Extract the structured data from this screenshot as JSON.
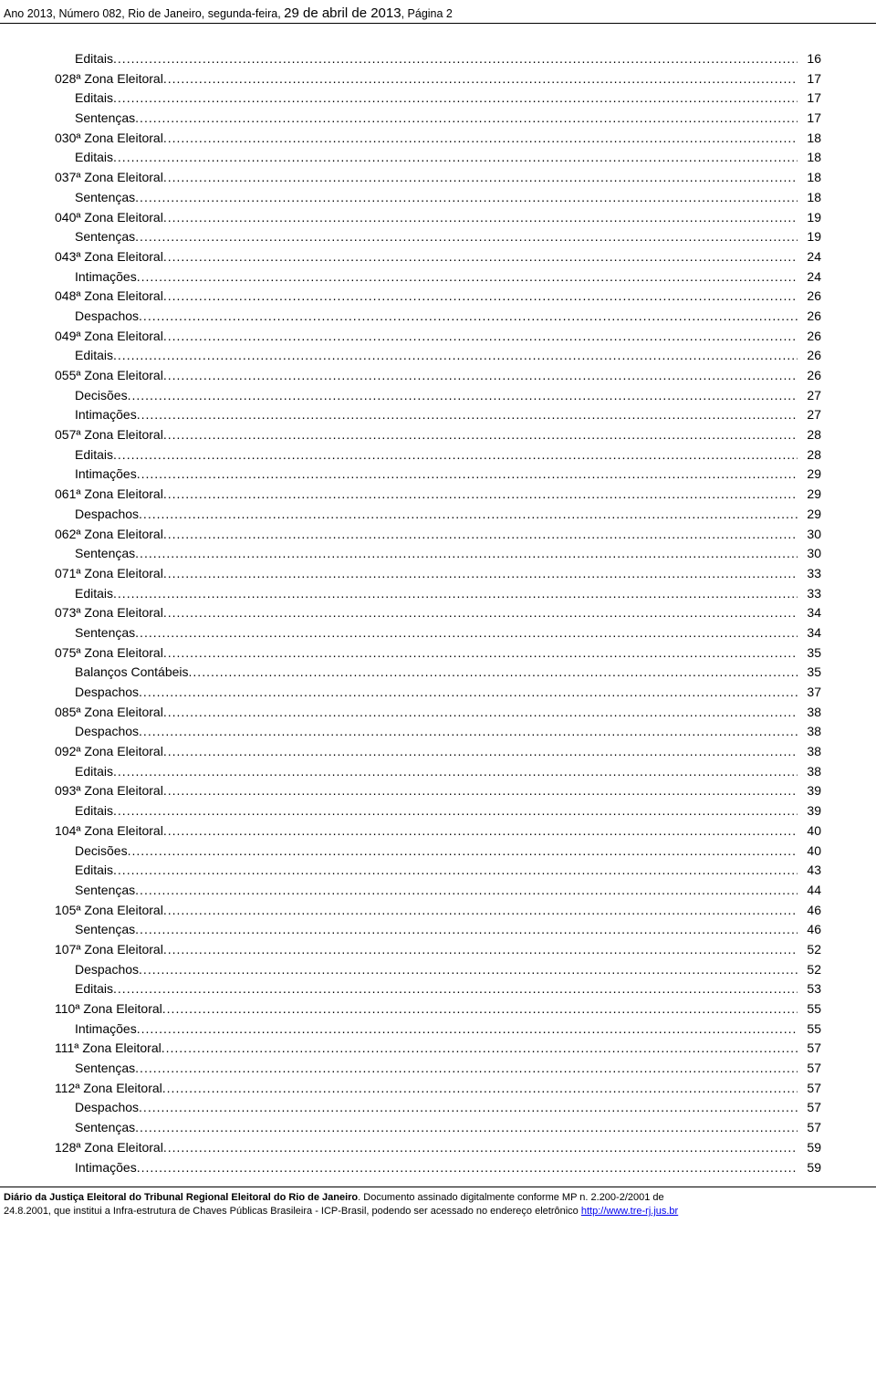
{
  "header": {
    "prefix": "Ano 2013, Número 082, Rio de Janeiro, segunda-feira, ",
    "date": "29 de abril de 2013",
    "suffix": ", Página 2"
  },
  "toc": [
    {
      "level": 1,
      "label": "Editais",
      "page": "16"
    },
    {
      "level": 0,
      "label": "028ª Zona Eleitoral",
      "page": "17"
    },
    {
      "level": 1,
      "label": "Editais",
      "page": "17"
    },
    {
      "level": 1,
      "label": "Sentenças",
      "page": "17"
    },
    {
      "level": 0,
      "label": "030ª Zona Eleitoral",
      "page": "18"
    },
    {
      "level": 1,
      "label": "Editais",
      "page": "18"
    },
    {
      "level": 0,
      "label": "037ª Zona Eleitoral",
      "page": "18"
    },
    {
      "level": 1,
      "label": "Sentenças",
      "page": "18"
    },
    {
      "level": 0,
      "label": "040ª Zona Eleitoral",
      "page": "19"
    },
    {
      "level": 1,
      "label": "Sentenças",
      "page": "19"
    },
    {
      "level": 0,
      "label": "043ª Zona Eleitoral",
      "page": "24"
    },
    {
      "level": 1,
      "label": "Intimações",
      "page": "24"
    },
    {
      "level": 0,
      "label": "048ª Zona Eleitoral",
      "page": "26"
    },
    {
      "level": 1,
      "label": "Despachos",
      "page": "26"
    },
    {
      "level": 0,
      "label": "049ª Zona Eleitoral",
      "page": "26"
    },
    {
      "level": 1,
      "label": "Editais",
      "page": "26"
    },
    {
      "level": 0,
      "label": "055ª Zona Eleitoral",
      "page": "26"
    },
    {
      "level": 1,
      "label": "Decisões",
      "page": "27"
    },
    {
      "level": 1,
      "label": "Intimações",
      "page": "27"
    },
    {
      "level": 0,
      "label": "057ª Zona Eleitoral",
      "page": "28"
    },
    {
      "level": 1,
      "label": "Editais",
      "page": "28"
    },
    {
      "level": 1,
      "label": "Intimações",
      "page": "29"
    },
    {
      "level": 0,
      "label": "061ª Zona Eleitoral",
      "page": "29"
    },
    {
      "level": 1,
      "label": "Despachos",
      "page": "29"
    },
    {
      "level": 0,
      "label": "062ª Zona Eleitoral",
      "page": "30"
    },
    {
      "level": 1,
      "label": "Sentenças",
      "page": "30"
    },
    {
      "level": 0,
      "label": "071ª Zona Eleitoral",
      "page": "33"
    },
    {
      "level": 1,
      "label": "Editais",
      "page": "33"
    },
    {
      "level": 0,
      "label": "073ª Zona Eleitoral",
      "page": "34"
    },
    {
      "level": 1,
      "label": "Sentenças",
      "page": "34"
    },
    {
      "level": 0,
      "label": "075ª Zona Eleitoral",
      "page": "35"
    },
    {
      "level": 1,
      "label": "Balanços Contábeis",
      "page": "35"
    },
    {
      "level": 1,
      "label": "Despachos",
      "page": "37"
    },
    {
      "level": 0,
      "label": "085ª Zona Eleitoral",
      "page": "38"
    },
    {
      "level": 1,
      "label": "Despachos",
      "page": "38"
    },
    {
      "level": 0,
      "label": "092ª Zona Eleitoral",
      "page": "38"
    },
    {
      "level": 1,
      "label": "Editais",
      "page": "38"
    },
    {
      "level": 0,
      "label": "093ª Zona Eleitoral",
      "page": "39"
    },
    {
      "level": 1,
      "label": "Editais",
      "page": "39"
    },
    {
      "level": 0,
      "label": "104ª Zona Eleitoral",
      "page": "40"
    },
    {
      "level": 1,
      "label": "Decisões",
      "page": "40"
    },
    {
      "level": 1,
      "label": "Editais",
      "page": "43"
    },
    {
      "level": 1,
      "label": "Sentenças",
      "page": "44"
    },
    {
      "level": 0,
      "label": "105ª Zona Eleitoral",
      "page": "46"
    },
    {
      "level": 1,
      "label": "Sentenças",
      "page": "46"
    },
    {
      "level": 0,
      "label": "107ª Zona Eleitoral",
      "page": "52"
    },
    {
      "level": 1,
      "label": "Despachos",
      "page": "52"
    },
    {
      "level": 1,
      "label": "Editais",
      "page": "53"
    },
    {
      "level": 0,
      "label": "110ª Zona Eleitoral",
      "page": "55"
    },
    {
      "level": 1,
      "label": "Intimações",
      "page": "55"
    },
    {
      "level": 0,
      "label": "111ª Zona Eleitoral",
      "page": "57"
    },
    {
      "level": 1,
      "label": "Sentenças",
      "page": "57"
    },
    {
      "level": 0,
      "label": "112ª Zona Eleitoral",
      "page": "57"
    },
    {
      "level": 1,
      "label": "Despachos",
      "page": "57"
    },
    {
      "level": 1,
      "label": "Sentenças",
      "page": "57"
    },
    {
      "level": 0,
      "label": "128ª Zona Eleitoral",
      "page": "59"
    },
    {
      "level": 1,
      "label": "Intimações",
      "page": "59"
    }
  ],
  "footer": {
    "line1_bold": "Diário da Justiça Eleitoral do Tribunal Regional Eleitoral do Rio de Janeiro",
    "line1_rest": ". Documento assinado digitalmente conforme MP n. 2.200-2/2001 de",
    "line2_before": "24.8.2001, que institui a Infra-estrutura de Chaves Públicas Brasileira - ICP-Brasil, podendo ser acessado no endereço eletrônico ",
    "link_text": "http://www.tre-rj.jus.br"
  }
}
